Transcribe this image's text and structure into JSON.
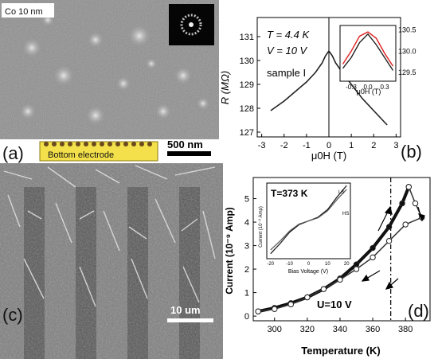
{
  "panel_a": {
    "label": "(a)",
    "sample": "Co 10 nm",
    "electrode": "Bottom electrode",
    "scalebar": "500 nm"
  },
  "panel_b": {
    "label": "(b)",
    "ylabel": "R (MΩ)",
    "xlabel": "μ0H (T)",
    "T_text": "T = 4.4 K",
    "V_text": "V = 10 V",
    "sample_text": "sample I",
    "yticks": [
      "127",
      "128",
      "129",
      "130",
      "131"
    ],
    "xticks": [
      "-3",
      "-2",
      "-1",
      "0",
      "1",
      "2",
      "3"
    ],
    "inset": {
      "xlabel": "μ0H (T)",
      "yticks": [
        "129.5",
        "130.0",
        "130.5"
      ],
      "xticks": [
        "-0.3",
        "0.0",
        "0.3"
      ]
    }
  },
  "panel_c": {
    "label": "(c)",
    "scalebar": "10 um"
  },
  "panel_d": {
    "label": "(d)",
    "ylabel": "Current (10⁻⁹ Amp)",
    "xlabel": "Temperature (K)",
    "U_text": "U=10 V",
    "yticks": [
      "0",
      "1",
      "2",
      "3",
      "4",
      "5"
    ],
    "xticks": [
      "300",
      "320",
      "340",
      "360",
      "380"
    ],
    "inset": {
      "T_text": "T=373 K",
      "ylabel": "Current (10⁻⁹ Amp)",
      "xlabel": "Bias Voltage (V)",
      "xticks": [
        "-20",
        "-10",
        "0",
        "10",
        "20"
      ],
      "LS": "LS",
      "HS": "HS"
    }
  },
  "chart_data": [
    {
      "type": "line",
      "panel": "b",
      "xlabel": "μ0H (T)",
      "ylabel": "R (MΩ)",
      "xlim": [
        -3.2,
        3.2
      ],
      "ylim": [
        126.8,
        131.8
      ],
      "x": [
        -2.6,
        -2.0,
        -1.5,
        -1.0,
        -0.6,
        -0.3,
        -0.15,
        0,
        0.15,
        0.3,
        0.6,
        1.0,
        1.5,
        2.0,
        2.6
      ],
      "y": [
        127.9,
        128.3,
        128.7,
        129.1,
        129.5,
        129.9,
        130.2,
        130.4,
        130.2,
        129.9,
        129.5,
        129.0,
        128.4,
        127.9,
        127.3
      ],
      "inset": {
        "xlim": [
          -0.5,
          0.5
        ],
        "ylim": [
          129.3,
          130.6
        ],
        "series": [
          {
            "color": "#222222",
            "x": [
              -0.45,
              -0.3,
              -0.15,
              0,
              0.15,
              0.3,
              0.45
            ],
            "y": [
              129.6,
              129.85,
              130.2,
              130.4,
              130.15,
              129.85,
              129.55
            ]
          },
          {
            "color": "#e02020",
            "x": [
              -0.45,
              -0.3,
              -0.15,
              0,
              0.15,
              0.3,
              0.45
            ],
            "y": [
              129.7,
              130.0,
              130.35,
              130.45,
              130.3,
              129.95,
              129.65
            ]
          }
        ]
      }
    },
    {
      "type": "line",
      "panel": "d",
      "xlabel": "Temperature (K)",
      "ylabel": "Current (10⁻⁹ Amp)",
      "xlim": [
        287,
        395
      ],
      "ylim": [
        -0.2,
        5.9
      ],
      "vline": 371,
      "series": [
        {
          "color": "#111111",
          "marker": "filled",
          "x": [
            290,
            300,
            310,
            320,
            330,
            340,
            350,
            360,
            370,
            378,
            382
          ],
          "y": [
            0.2,
            0.35,
            0.55,
            0.8,
            1.15,
            1.6,
            2.2,
            2.9,
            3.8,
            4.8,
            5.5
          ]
        },
        {
          "color": "#333333",
          "marker": "open",
          "x": [
            382,
            386,
            390,
            380,
            370,
            360,
            350,
            340,
            330,
            320,
            310,
            300,
            290
          ],
          "y": [
            5.5,
            4.8,
            4.2,
            3.9,
            3.2,
            2.5,
            2.0,
            1.55,
            1.15,
            0.8,
            0.5,
            0.3,
            0.2
          ]
        }
      ],
      "inset": {
        "xlim": [
          -22,
          22
        ],
        "ylim": [
          -3,
          3
        ],
        "series": [
          {
            "color": "#111111",
            "x": [
              -20,
              -15,
              -10,
              -5,
              0,
              5,
              10,
              15,
              20
            ],
            "y": [
              -2.6,
              -1.8,
              -0.9,
              -0.3,
              0,
              0.3,
              0.9,
              1.9,
              2.8
            ]
          },
          {
            "color": "#555555",
            "x": [
              -20,
              -15,
              -10,
              -5,
              0,
              5,
              10,
              15,
              20
            ],
            "y": [
              -2.3,
              -1.6,
              -0.8,
              -0.25,
              0,
              0.25,
              0.8,
              1.7,
              2.5
            ]
          }
        ]
      }
    }
  ]
}
